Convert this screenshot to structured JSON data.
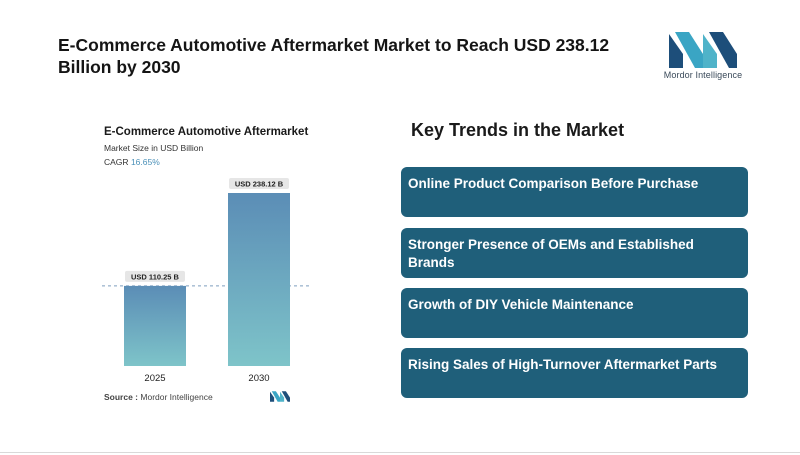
{
  "header": {
    "title": "E-Commerce Automotive Aftermarket Market to Reach USD 238.12 Billion by 2030",
    "brand_name": "Mordor Intelligence"
  },
  "chart_data": {
    "type": "bar",
    "title": "E-Commerce Automotive Aftermarket",
    "subtitle": "Market Size in USD Billion",
    "cagr_label": "CAGR",
    "cagr_value": "16.65%",
    "categories": [
      "2025",
      "2030"
    ],
    "values": [
      110.25,
      238.12
    ],
    "value_labels": [
      "USD 110.25 B",
      "USD 238.12 B"
    ],
    "xlabel": "",
    "ylabel": "Market Size in USD Billion",
    "ylim": [
      0,
      238.12
    ],
    "reference_line_at": 110.25,
    "colors": {
      "top": "#5b8db6",
      "bottom": "#7ec4c9",
      "label_bg": "#e6e6e6"
    }
  },
  "source": {
    "label": "Source :",
    "text": "Mordor Intelligence"
  },
  "trends": {
    "title": "Key Trends in the Market",
    "items": [
      "Online Product Comparison Before Purchase",
      "Stronger Presence of OEMs and Established Brands",
      "Growth of DIY Vehicle Maintenance",
      "Rising Sales of High-Turnover Aftermarket Parts"
    ]
  },
  "colors": {
    "accent": "#1f5f7a",
    "logo_dark": "#1d4e7a",
    "logo_light": "#4fb3c9"
  }
}
